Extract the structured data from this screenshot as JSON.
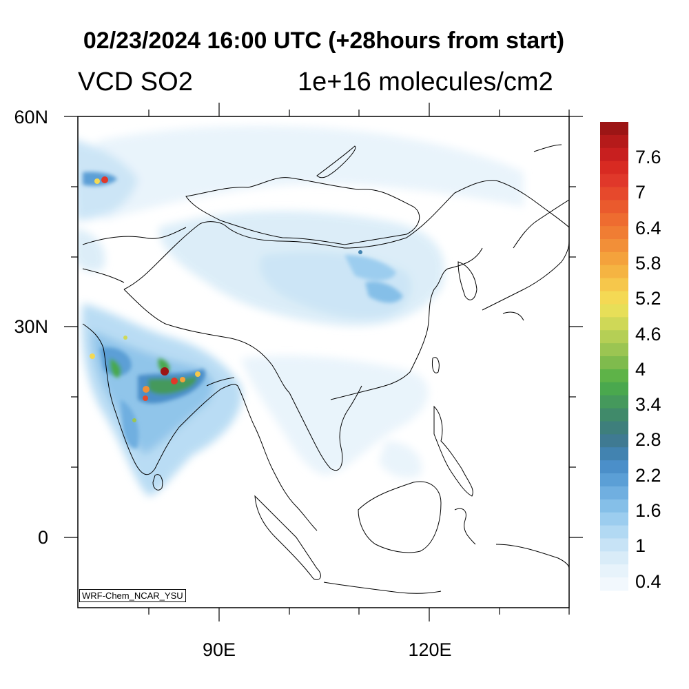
{
  "title": "02/23/2024 16:00 UTC (+28hours from start)",
  "variable": "VCD SO2",
  "units": "1e+16 molecules/cm2",
  "watermark": "WRF-Chem_NCAR_YSU",
  "lat_labels": {
    "n60": "60N",
    "n30": "30N",
    "eq": "0"
  },
  "lon_labels": {
    "e90": "90E",
    "e120": "120E"
  },
  "map_extent": {
    "lon": [
      70,
      140
    ],
    "lat": [
      -10,
      60
    ]
  },
  "colorbar": {
    "labels": [
      "7.6",
      "7",
      "6.4",
      "5.8",
      "5.2",
      "4.6",
      "4",
      "3.4",
      "2.8",
      "2.2",
      "1.6",
      "1",
      "0.4"
    ],
    "colors": [
      "#9c1515",
      "#b51a1a",
      "#c81f1f",
      "#d82a22",
      "#e0382a",
      "#e6492c",
      "#ea5a2d",
      "#ee6c30",
      "#f07d33",
      "#f28f38",
      "#f4a23c",
      "#f5b442",
      "#f6c74b",
      "#f4d954",
      "#e7df58",
      "#cfd857",
      "#b5cf55",
      "#9bc552",
      "#7fbb4d",
      "#5eb348",
      "#4aa84e",
      "#45995c",
      "#408a6a",
      "#3e7f7c",
      "#3f7a92",
      "#4283b0",
      "#4b8fc9",
      "#5b9fd6",
      "#70afe0",
      "#85bfe8",
      "#9ccdef",
      "#b2d9f3",
      "#c7e3f6",
      "#d9ecf8",
      "#e7f3fb",
      "#f2f8fd"
    ]
  },
  "so2_field": {
    "description_hotspots": [
      {
        "lon": 83,
        "lat": 23.5,
        "value": 7.6
      },
      {
        "lon": 84.5,
        "lat": 22.5,
        "value": 6.4
      },
      {
        "lon": 80,
        "lat": 21,
        "value": 5.8
      },
      {
        "lon": 87,
        "lat": 23,
        "value": 5.2
      },
      {
        "lon": 73.5,
        "lat": 51.5,
        "value": 5.8
      },
      {
        "lon": 72,
        "lat": 26,
        "value": 4.6
      },
      {
        "lon": 77,
        "lat": 28.5,
        "value": 3.4
      },
      {
        "lon": 78,
        "lat": 16.5,
        "value": 3.4
      }
    ]
  }
}
